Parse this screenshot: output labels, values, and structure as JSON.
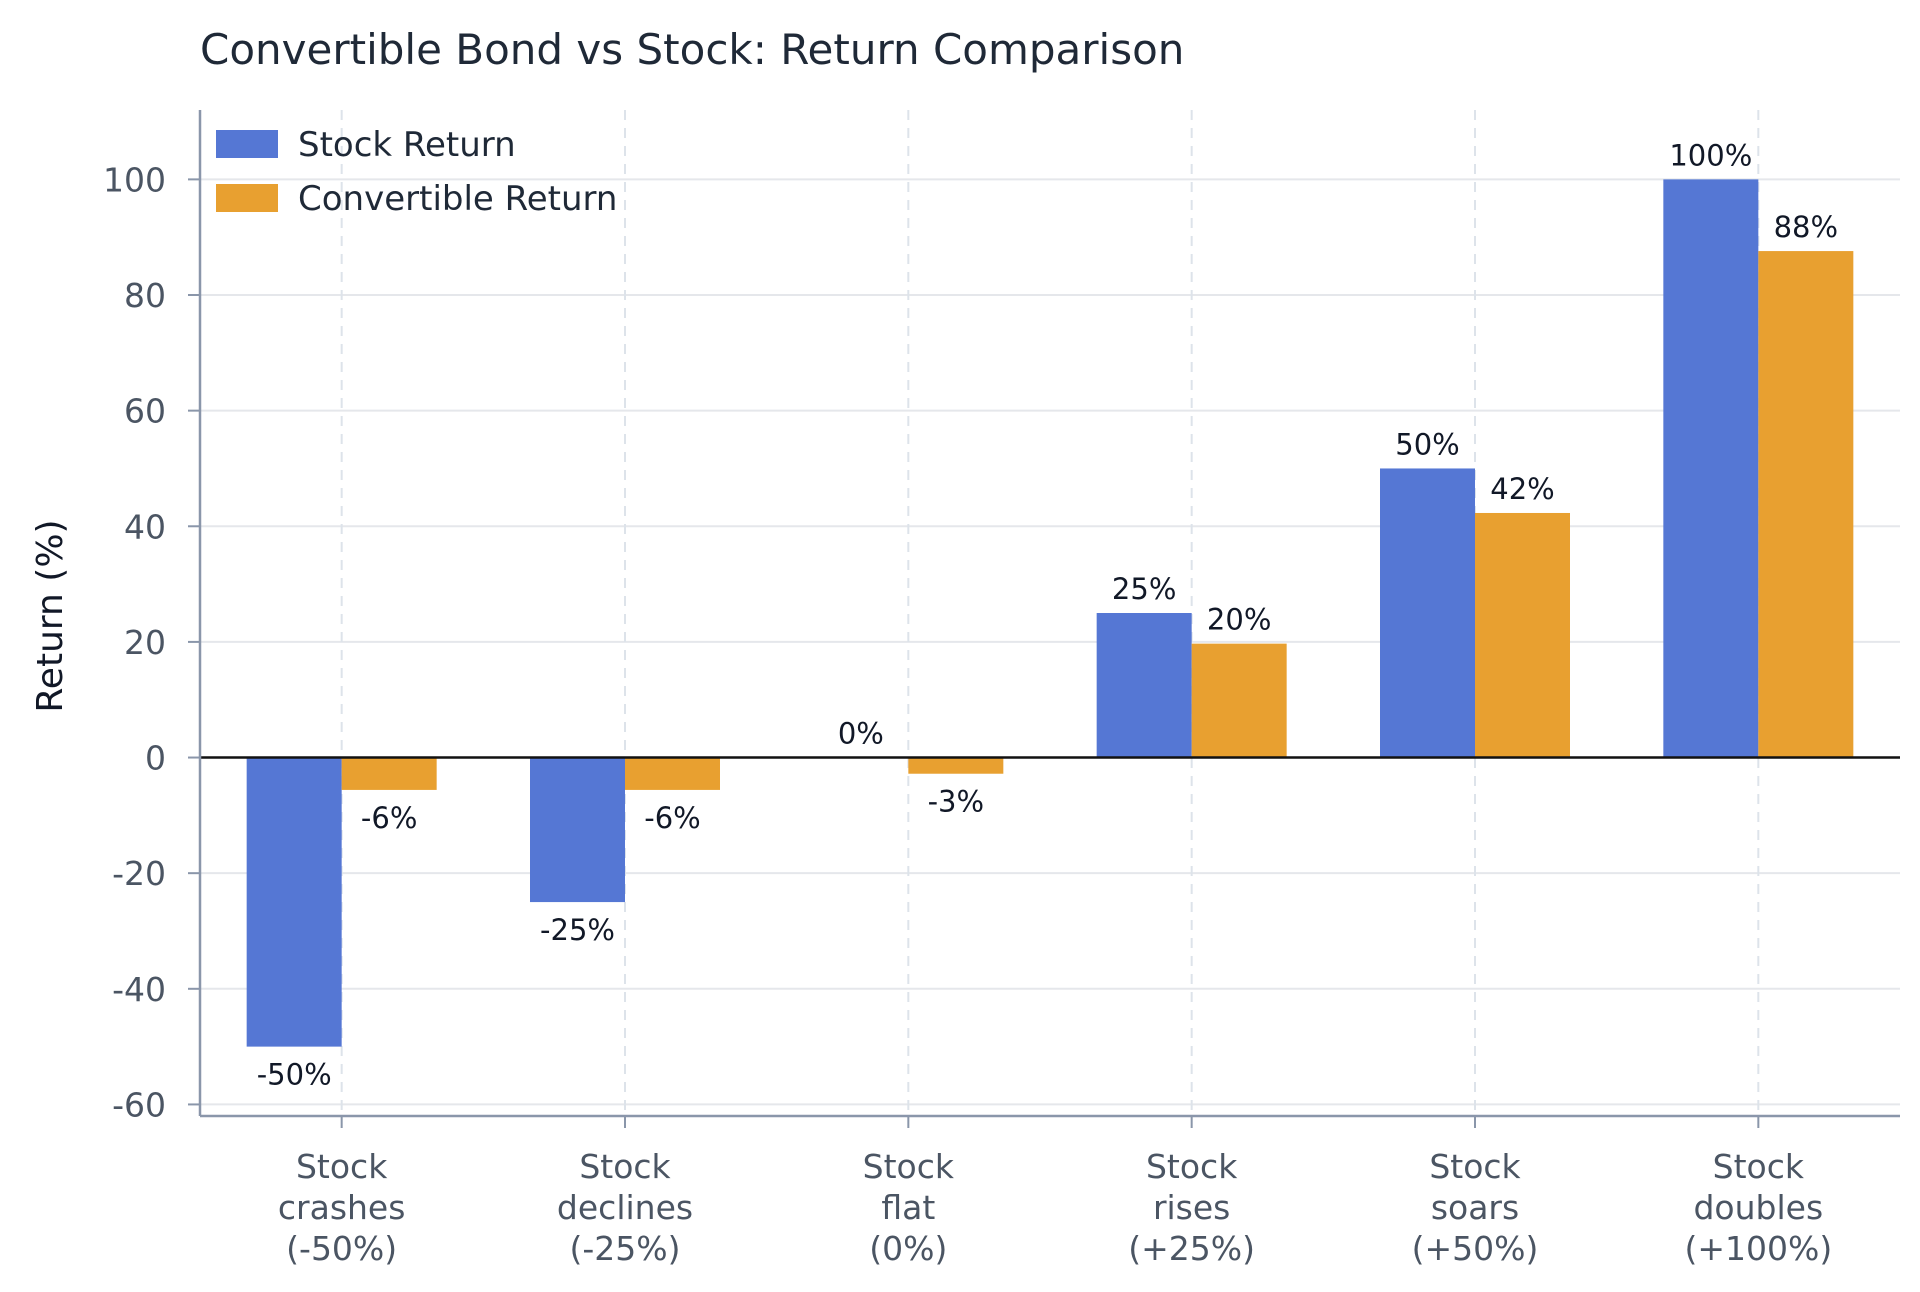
{
  "chart_data": {
    "type": "bar",
    "title": "Convertible Bond vs Stock: Return Comparison",
    "xlabel": "",
    "ylabel": "Return (%)",
    "ylim": [
      -62,
      112
    ],
    "yticks": [
      "100",
      "80",
      "60",
      "40",
      "20",
      "0",
      "-20",
      "-40",
      "-60"
    ],
    "categories": [
      [
        "Stock",
        "crashes",
        "(-50%)"
      ],
      [
        "Stock",
        "declines",
        "(-25%)"
      ],
      [
        "Stock",
        "flat",
        "(0%)"
      ],
      [
        "Stock",
        "rises",
        "(+25%)"
      ],
      [
        "Stock",
        "soars",
        "(+50%)"
      ],
      [
        "Stock",
        "doubles",
        "(+100%)"
      ]
    ],
    "series": [
      {
        "name": "Stock Return",
        "color": "#5577d4",
        "values": [
          -50,
          -25,
          0,
          25,
          50,
          100
        ],
        "labels": [
          "-50%",
          "-25%",
          "0%",
          "25%",
          "50%",
          "100%"
        ]
      },
      {
        "name": "Convertible Return",
        "color": "#e8a030",
        "values": [
          -5.6,
          -5.6,
          -2.8,
          19.7,
          42.3,
          87.6
        ],
        "labels": [
          "-6%",
          "-6%",
          "-3%",
          "20%",
          "42%",
          "88%"
        ]
      }
    ],
    "grid": true,
    "legend_position": "top-left"
  }
}
